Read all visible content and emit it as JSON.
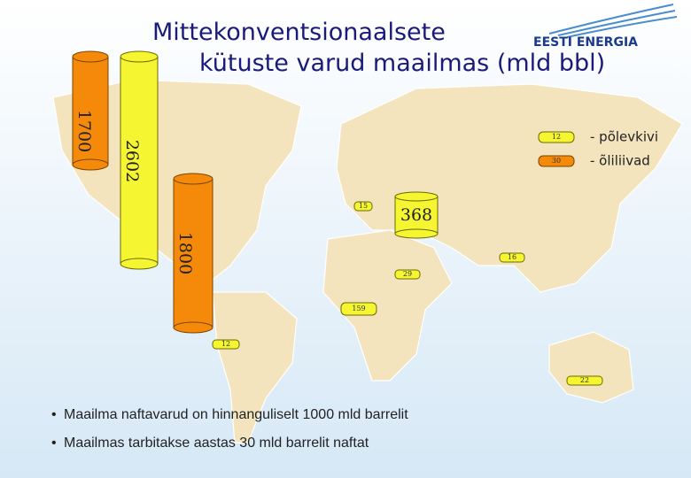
{
  "header": {
    "title_line1": "Mittekonventsionaalsete",
    "title_line2": "kütuste varud maailmas (mld bbl)",
    "logo": "EESTI ENERGIA"
  },
  "legend": [
    {
      "value": "12",
      "label": "- põlevkivi"
    },
    {
      "value": "30",
      "label": "- õliliivad"
    }
  ],
  "cylinders": [
    {
      "label": "1700"
    },
    {
      "label": "2602"
    },
    {
      "label": "1800"
    },
    {
      "label": "368"
    }
  ],
  "map_labels": [
    {
      "label": "15"
    },
    {
      "label": "16"
    },
    {
      "label": "29"
    },
    {
      "label": "159"
    },
    {
      "label": "12"
    },
    {
      "label": "22"
    }
  ],
  "bullets": [
    "Maailma naftavarud on hinnanguliselt 1000 mld barrelit",
    "Maailmas tarbitakse aastas 30 mld barrelit naftat"
  ]
}
